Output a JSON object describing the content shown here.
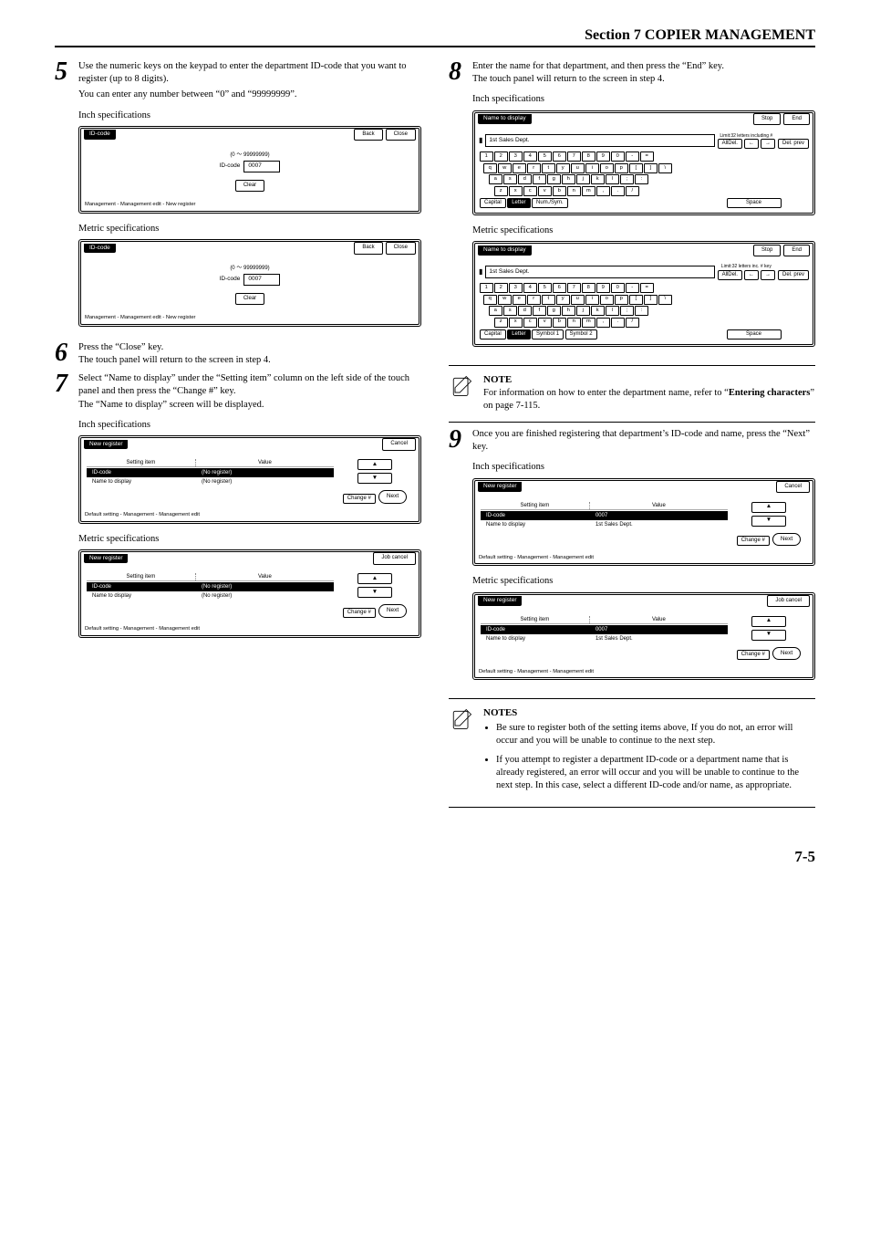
{
  "header": "Section 7  COPIER MANAGEMENT",
  "page_number": "7-5",
  "steps": {
    "s5": {
      "num": "5",
      "p1": "Use the numeric keys on the keypad to enter the department ID-code that you want to register (up to 8 digits).",
      "p2": "You can enter any number between “0” and “99999999”.",
      "inch": "Inch specifications",
      "metric": "Metric specifications"
    },
    "s6": {
      "num": "6",
      "p1": "Press the “Close” key.",
      "p2": "The touch panel will return to the screen in step 4."
    },
    "s7": {
      "num": "7",
      "p1": "Select “Name to display” under the “Setting item” column on the left side of the touch panel and then press the “Change #” key.",
      "p2": "The “Name to display” screen will be displayed.",
      "inch": "Inch specifications",
      "metric": "Metric specifications"
    },
    "s8": {
      "num": "8",
      "p1": "Enter the name for that department, and then press the “End” key.",
      "p2": "The touch panel will return to the screen in step 4.",
      "inch": "Inch specifications",
      "metric": "Metric specifications"
    },
    "s9": {
      "num": "9",
      "p1": "Once you are finished registering that department’s ID-code and name, press the “Next” key.",
      "inch": "Inch specifications",
      "metric": "Metric specifications"
    }
  },
  "note1": {
    "title": "NOTE",
    "text_a": "For information on how to enter the department name, refer to “",
    "text_b": "Entering characters",
    "text_c": "” on page 7-115."
  },
  "note2": {
    "title": "NOTES",
    "b1": "Be sure to register both of the setting items above, If you do not, an error will occur and you will be unable to continue to the next step.",
    "b2": "If you attempt to register a department ID-code or a department name that is already registered, an error will occur and you will be unable to continue to the next step. In this case, select a different ID-code and/or name, as appropriate."
  },
  "ui": {
    "idcode": {
      "title": "ID-code",
      "back": "Back",
      "close": "Close",
      "range": "(0 〜 99999999)",
      "label": "ID-code",
      "value": "0007",
      "clear": "Clear",
      "breadcrumb": "Management - Management edit - New register"
    },
    "newreg": {
      "title": "New register",
      "cancel": "Cancel",
      "jobcancel": "Job cancel",
      "col1": "Setting item",
      "col2": "Value",
      "r1a": "ID-code",
      "r1b_noreg": "(No register)",
      "r1b_val": "0007",
      "r2a": "Name to display",
      "r2b_noreg": "(No register)",
      "r2b_val": "1st Sales Dept.",
      "change": "Change #",
      "next": "Next",
      "breadcrumb": "Default setting - Management - Management edit"
    },
    "kb": {
      "title": "Name to display",
      "stop": "Stop",
      "end": "End",
      "input": "1st Sales Dept.",
      "limit_inch": "Limit:32 letters including #",
      "limit_metric": "Limit:32 letters inc. # key",
      "alldel": "AllDel.",
      "delprev": "Del. prev",
      "row1": [
        "1",
        "2",
        "3",
        "4",
        "5",
        "6",
        "7",
        "8",
        "9",
        "0",
        "-",
        "="
      ],
      "row2": [
        "q",
        "w",
        "e",
        "r",
        "t",
        "y",
        "u",
        "i",
        "o",
        "p",
        "[",
        "]",
        "\\"
      ],
      "row3": [
        "a",
        "s",
        "d",
        "f",
        "g",
        "h",
        "j",
        "k",
        "l",
        ";",
        ":"
      ],
      "row4": [
        "z",
        "x",
        "c",
        "v",
        "b",
        "n",
        "m",
        ",",
        ".",
        "/"
      ],
      "capital": "Capital",
      "letter": "Letter",
      "numsym": "Num./Sym.",
      "sym1": "Symbol 1",
      "sym2": "Symbol 2",
      "space": "Space"
    }
  }
}
